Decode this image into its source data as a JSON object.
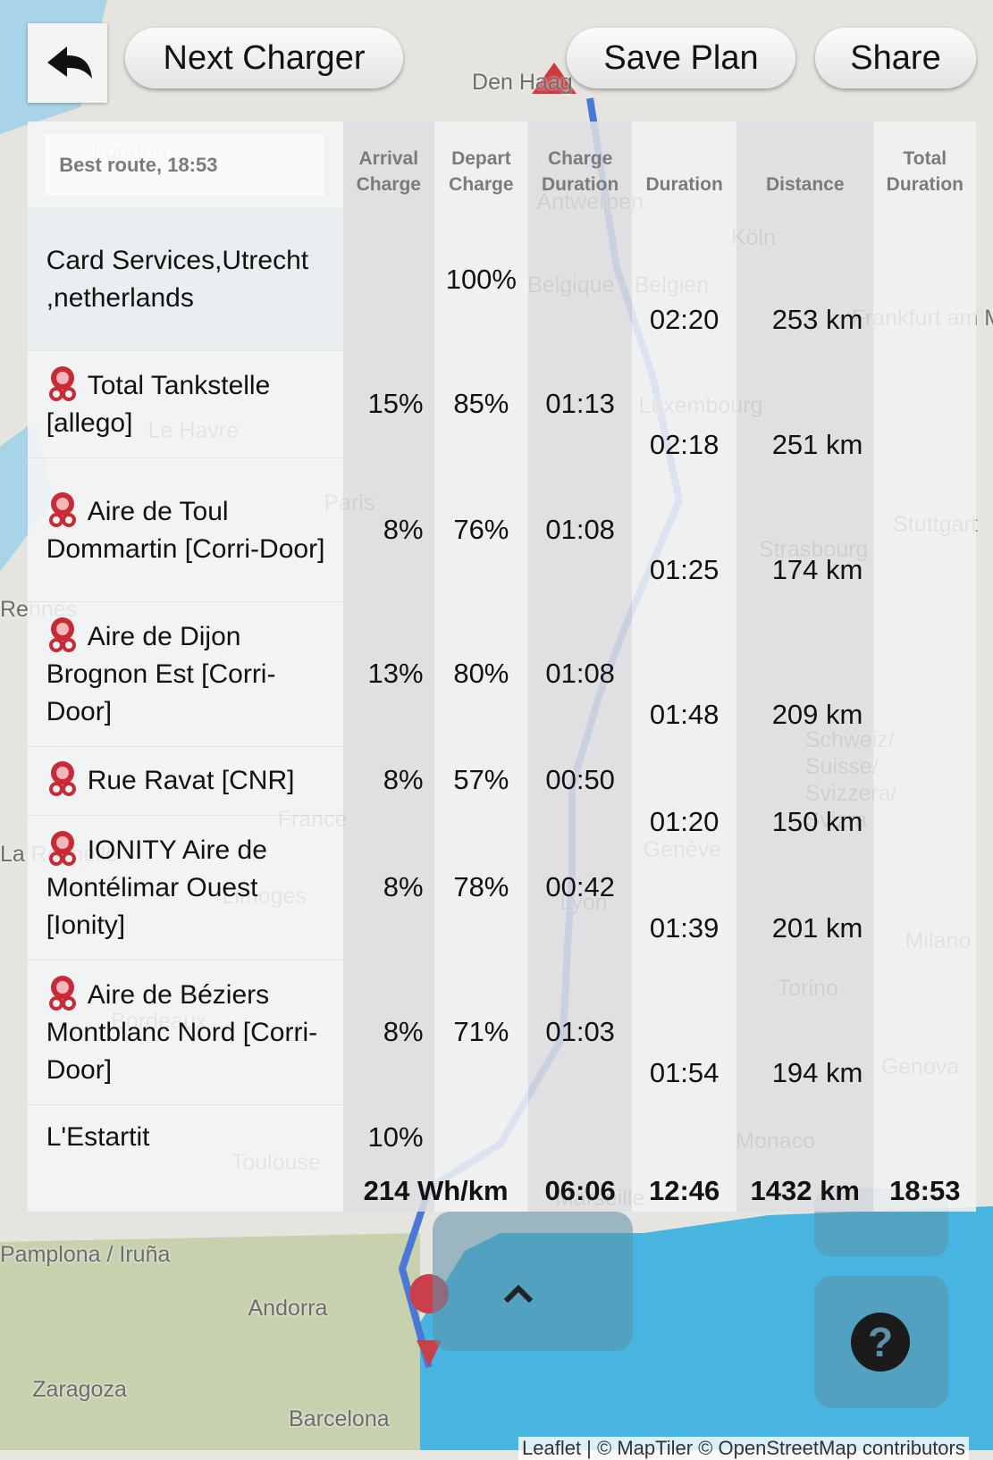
{
  "header": {
    "next_charger": "Next Charger",
    "save_plan": "Save Plan",
    "share": "Share"
  },
  "table": {
    "title": "Best route, 18:53",
    "columns": {
      "arrival": "Arrival Charge",
      "depart": "Depart Charge",
      "charge_duration": "Charge Duration",
      "duration": "Duration",
      "distance": "Distance",
      "total_duration": "Total Duration"
    },
    "stops": [
      {
        "name": "Card Services,Utrecht ,netherlands",
        "depart": "100%"
      },
      {
        "name": "Total Tankstelle [allego]",
        "arrival": "15%",
        "depart": "85%",
        "charge_duration": "01:13"
      },
      {
        "name": "Aire de Toul Dommartin [Corri-Door]",
        "arrival": "8%",
        "depart": "76%",
        "charge_duration": "01:08"
      },
      {
        "name": "Aire de Dijon Brognon Est [Corri-Door]",
        "arrival": "13%",
        "depart": "80%",
        "charge_duration": "01:08"
      },
      {
        "name": "Rue Ravat [CNR]",
        "arrival": "8%",
        "depart": "57%",
        "charge_duration": "00:50"
      },
      {
        "name": "IONITY Aire de Montélimar Ouest [Ionity]",
        "arrival": "8%",
        "depart": "78%",
        "charge_duration": "00:42"
      },
      {
        "name": "Aire de Béziers Montblanc Nord [Corri-Door]",
        "arrival": "8%",
        "depart": "71%",
        "charge_duration": "01:03"
      },
      {
        "name": "L'Estartit",
        "arrival": "10%"
      }
    ],
    "legs": [
      {
        "duration": "02:20",
        "distance": "253 km"
      },
      {
        "duration": "02:18",
        "distance": "251 km"
      },
      {
        "duration": "01:25",
        "distance": "174 km"
      },
      {
        "duration": "01:48",
        "distance": "209 km"
      },
      {
        "duration": "01:20",
        "distance": "150 km"
      },
      {
        "duration": "01:39",
        "distance": "201 km"
      },
      {
        "duration": "01:54",
        "distance": "194 km"
      }
    ],
    "totals": {
      "consumption": "214 Wh/km",
      "charge_duration": "06:06",
      "duration": "12:46",
      "distance": "1432 km",
      "total_duration": "18:53"
    }
  },
  "map": {
    "labels": [
      "Den Haag",
      "London",
      "Antwerpen",
      "Köln",
      "Belgique - Belgien",
      "Frankfurt am Main",
      "Luxembourg",
      "Le Havre",
      "Paris",
      "Strasbourg",
      "Stuttgart",
      "Rennes",
      "France",
      "Schweiz/ Suisse/ Svizzera/ Svizra",
      "Genève",
      "Lyon",
      "Limoges",
      "Milano",
      "Torino",
      "Genova",
      "Bordeaux",
      "Monaco",
      "Toulouse",
      "Marseille",
      "La Rochelle",
      "Pamplona / Iruña",
      "Andorra",
      "Zaragoza",
      "Barcelona"
    ],
    "attribution": "Leaflet | © MapTiler © OpenStreetMap contributors"
  }
}
